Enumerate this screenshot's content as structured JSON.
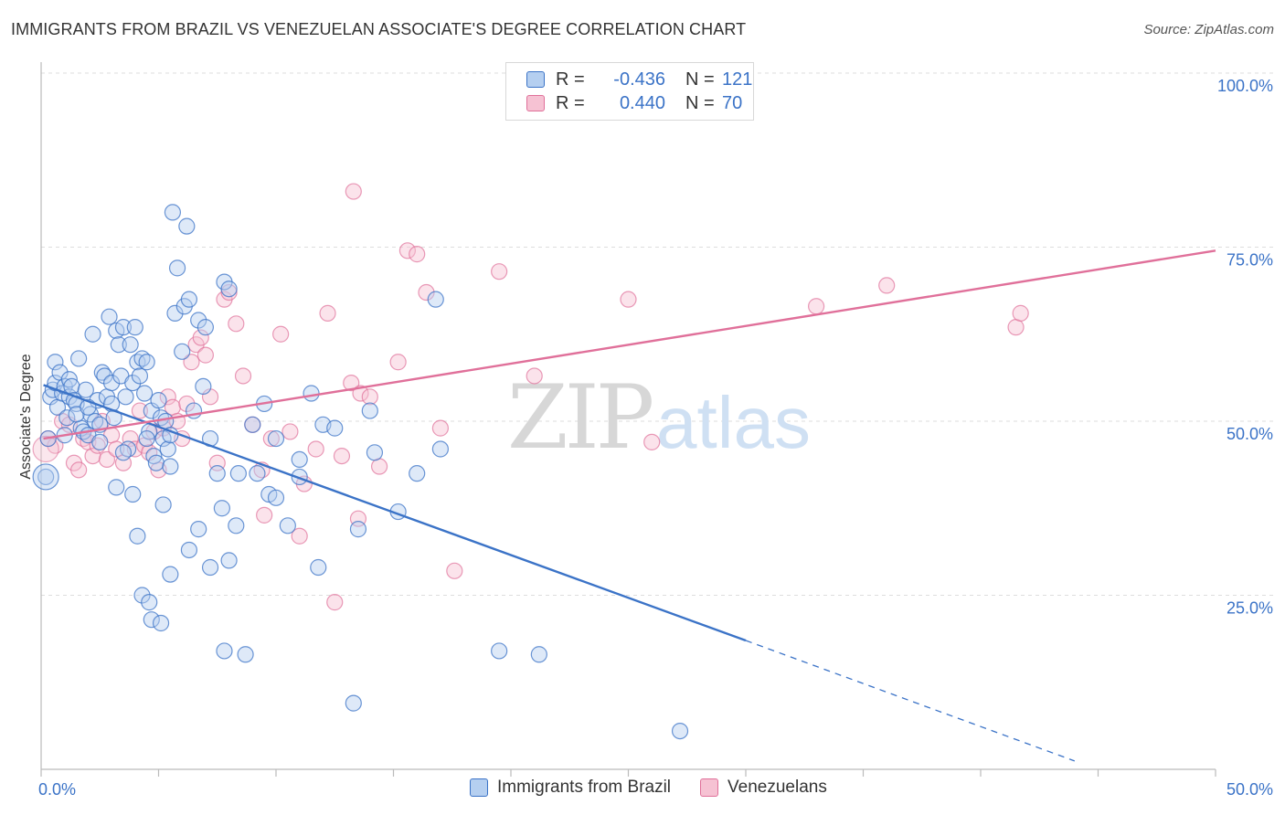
{
  "title": "IMMIGRANTS FROM BRAZIL VS VENEZUELAN ASSOCIATE'S DEGREE CORRELATION CHART",
  "source": "Source: ZipAtlas.com",
  "watermark": {
    "zip": "ZIP",
    "atlas": "atlas"
  },
  "colors": {
    "blue": "#3b73c7",
    "blue_fill": "#b5cff0",
    "pink": "#e0709a",
    "pink_fill": "#f6c2d3",
    "grid": "#dddddd"
  },
  "legend": {
    "rows": [
      {
        "r_label": "R =",
        "r_value": "-0.436",
        "n_label": "N =",
        "n_value": "121"
      },
      {
        "r_label": "R =",
        "r_value": "0.440",
        "n_label": "N =",
        "n_value": "70"
      }
    ]
  },
  "bottom_legend": {
    "brazil": "Immigrants from Brazil",
    "venezuelans": "Venezuelans"
  },
  "chart_data": {
    "type": "scatter",
    "title": "IMMIGRANTS FROM BRAZIL VS VENEZUELAN ASSOCIATE'S DEGREE CORRELATION CHART",
    "xlabel": "",
    "ylabel": "Associate's Degree",
    "xlim": [
      0,
      50
    ],
    "ylim": [
      0,
      100
    ],
    "x_tick_labels": [
      "0.0%",
      "50.0%"
    ],
    "y_tick_labels": [
      "100.0%",
      "75.0%",
      "50.0%",
      "25.0%"
    ],
    "y_ticks": [
      100,
      75,
      50,
      25
    ],
    "grid": true,
    "legend_position": "top-center",
    "series": [
      {
        "name": "Immigrants from Brazil",
        "color": "#3b73c7",
        "r": -0.436,
        "n": 121,
        "trend": {
          "x": [
            0.1,
            30.0
          ],
          "y": [
            55.2,
            18.5
          ],
          "dashed_to": [
            44.0,
            1.2
          ]
        },
        "points": [
          [
            0.3,
            47.5
          ],
          [
            0.4,
            53.5
          ],
          [
            0.5,
            54.5
          ],
          [
            0.6,
            55.5
          ],
          [
            0.6,
            58.5
          ],
          [
            0.7,
            52.0
          ],
          [
            0.8,
            57.0
          ],
          [
            0.9,
            54.0
          ],
          [
            1.0,
            55.0
          ],
          [
            1.1,
            50.5
          ],
          [
            1.2,
            53.5
          ],
          [
            1.2,
            56.0
          ],
          [
            1.3,
            55.0
          ],
          [
            1.4,
            53.0
          ],
          [
            1.5,
            52.5
          ],
          [
            1.6,
            59.0
          ],
          [
            1.7,
            49.0
          ],
          [
            1.8,
            48.5
          ],
          [
            1.9,
            54.5
          ],
          [
            2.0,
            48.0
          ],
          [
            2.1,
            51.0
          ],
          [
            2.2,
            62.5
          ],
          [
            2.3,
            50.0
          ],
          [
            2.4,
            53.0
          ],
          [
            2.5,
            47.0
          ],
          [
            2.6,
            57.0
          ],
          [
            2.7,
            56.5
          ],
          [
            2.8,
            53.5
          ],
          [
            2.9,
            65.0
          ],
          [
            3.0,
            52.5
          ],
          [
            3.0,
            55.5
          ],
          [
            3.1,
            50.5
          ],
          [
            3.2,
            63.0
          ],
          [
            3.3,
            61.0
          ],
          [
            3.4,
            56.5
          ],
          [
            3.5,
            63.5
          ],
          [
            3.6,
            53.5
          ],
          [
            3.7,
            46.0
          ],
          [
            3.8,
            61.0
          ],
          [
            3.9,
            55.5
          ],
          [
            4.0,
            63.5
          ],
          [
            4.1,
            58.5
          ],
          [
            4.2,
            56.5
          ],
          [
            4.3,
            59.0
          ],
          [
            4.4,
            54.0
          ],
          [
            4.5,
            58.5
          ],
          [
            4.6,
            48.5
          ],
          [
            4.7,
            51.5
          ],
          [
            4.8,
            45.0
          ],
          [
            4.9,
            44.0
          ],
          [
            5.0,
            53.0
          ],
          [
            5.1,
            50.5
          ],
          [
            5.2,
            47.5
          ],
          [
            5.3,
            50.0
          ],
          [
            5.4,
            46.0
          ],
          [
            5.5,
            48.0
          ],
          [
            5.6,
            80.0
          ],
          [
            5.7,
            65.5
          ],
          [
            5.8,
            72.0
          ],
          [
            6.0,
            60.0
          ],
          [
            6.1,
            66.5
          ],
          [
            6.2,
            78.0
          ],
          [
            6.3,
            67.5
          ],
          [
            6.5,
            51.5
          ],
          [
            6.7,
            64.5
          ],
          [
            6.9,
            55.0
          ],
          [
            7.0,
            63.5
          ],
          [
            7.2,
            47.5
          ],
          [
            7.5,
            42.5
          ],
          [
            7.8,
            70.0
          ],
          [
            8.0,
            69.0
          ],
          [
            8.4,
            42.5
          ],
          [
            9.0,
            49.5
          ],
          [
            9.5,
            52.5
          ],
          [
            10.0,
            47.5
          ],
          [
            11.0,
            42.0
          ],
          [
            11.5,
            54.0
          ],
          [
            12.0,
            49.5
          ],
          [
            12.5,
            49.0
          ],
          [
            14.0,
            51.5
          ],
          [
            14.2,
            45.5
          ],
          [
            16.0,
            42.5
          ],
          [
            16.8,
            67.5
          ],
          [
            17.0,
            46.0
          ],
          [
            3.2,
            40.5
          ],
          [
            3.9,
            39.5
          ],
          [
            4.1,
            33.5
          ],
          [
            4.3,
            25.0
          ],
          [
            4.6,
            24.0
          ],
          [
            4.7,
            21.5
          ],
          [
            5.1,
            21.0
          ],
          [
            5.2,
            38.0
          ],
          [
            5.5,
            28.0
          ],
          [
            6.3,
            31.5
          ],
          [
            6.7,
            34.5
          ],
          [
            7.2,
            29.0
          ],
          [
            7.7,
            37.5
          ],
          [
            8.0,
            30.0
          ],
          [
            8.3,
            35.0
          ],
          [
            9.2,
            42.5
          ],
          [
            9.7,
            39.5
          ],
          [
            10.0,
            39.0
          ],
          [
            10.5,
            35.0
          ],
          [
            11.0,
            44.5
          ],
          [
            11.8,
            29.0
          ],
          [
            13.5,
            34.5
          ],
          [
            15.2,
            37.0
          ],
          [
            7.8,
            17.0
          ],
          [
            8.7,
            16.5
          ],
          [
            19.5,
            17.0
          ],
          [
            21.2,
            16.5
          ],
          [
            13.3,
            9.5
          ],
          [
            27.2,
            5.5
          ],
          [
            0.2,
            42.0
          ],
          [
            1.0,
            48.0
          ],
          [
            1.5,
            51.0
          ],
          [
            2.0,
            52.0
          ],
          [
            2.5,
            49.5
          ],
          [
            3.5,
            45.5
          ],
          [
            4.5,
            47.5
          ],
          [
            5.5,
            43.5
          ]
        ]
      },
      {
        "name": "Venezuelans",
        "color": "#e0709a",
        "r": 0.44,
        "n": 70,
        "trend": {
          "x": [
            0.1,
            50.0
          ],
          "y": [
            47.5,
            74.5
          ]
        },
        "points": [
          [
            0.3,
            47.5
          ],
          [
            0.6,
            46.5
          ],
          [
            0.9,
            50.0
          ],
          [
            1.2,
            49.5
          ],
          [
            1.4,
            44.0
          ],
          [
            1.6,
            43.0
          ],
          [
            1.8,
            47.5
          ],
          [
            2.0,
            47.0
          ],
          [
            2.2,
            45.0
          ],
          [
            2.4,
            46.5
          ],
          [
            2.6,
            50.0
          ],
          [
            2.8,
            44.5
          ],
          [
            3.0,
            48.0
          ],
          [
            3.2,
            46.0
          ],
          [
            3.5,
            44.0
          ],
          [
            3.8,
            47.5
          ],
          [
            4.0,
            46.0
          ],
          [
            4.2,
            51.5
          ],
          [
            4.4,
            46.5
          ],
          [
            4.6,
            45.5
          ],
          [
            4.8,
            48.5
          ],
          [
            5.0,
            43.0
          ],
          [
            5.2,
            49.0
          ],
          [
            5.4,
            53.5
          ],
          [
            5.6,
            52.0
          ],
          [
            5.8,
            50.0
          ],
          [
            6.0,
            47.5
          ],
          [
            6.2,
            52.5
          ],
          [
            6.4,
            58.5
          ],
          [
            6.6,
            61.0
          ],
          [
            6.8,
            62.0
          ],
          [
            7.0,
            59.5
          ],
          [
            7.2,
            53.5
          ],
          [
            7.5,
            44.0
          ],
          [
            7.8,
            67.5
          ],
          [
            8.0,
            68.5
          ],
          [
            8.3,
            64.0
          ],
          [
            8.6,
            56.5
          ],
          [
            9.0,
            49.5
          ],
          [
            9.4,
            43.0
          ],
          [
            9.8,
            47.5
          ],
          [
            10.2,
            62.5
          ],
          [
            10.6,
            48.5
          ],
          [
            11.2,
            41.0
          ],
          [
            11.7,
            46.0
          ],
          [
            12.2,
            65.5
          ],
          [
            12.8,
            45.0
          ],
          [
            13.2,
            55.5
          ],
          [
            13.6,
            54.0
          ],
          [
            14.0,
            53.5
          ],
          [
            14.4,
            43.5
          ],
          [
            15.2,
            58.5
          ],
          [
            15.6,
            74.5
          ],
          [
            16.0,
            74.0
          ],
          [
            16.4,
            68.5
          ],
          [
            17.0,
            49.0
          ],
          [
            17.6,
            28.5
          ],
          [
            19.5,
            71.5
          ],
          [
            21.0,
            56.5
          ],
          [
            25.0,
            67.5
          ],
          [
            26.0,
            47.0
          ],
          [
            33.0,
            66.5
          ],
          [
            36.0,
            69.5
          ],
          [
            41.5,
            63.5
          ],
          [
            41.7,
            65.5
          ],
          [
            13.3,
            83.0
          ],
          [
            12.5,
            24.0
          ],
          [
            11.0,
            33.5
          ],
          [
            9.5,
            36.5
          ],
          [
            13.5,
            36.0
          ]
        ]
      }
    ]
  }
}
